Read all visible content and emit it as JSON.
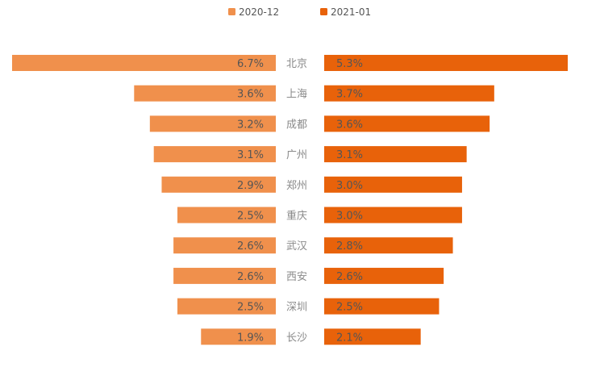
{
  "chart_data": {
    "type": "bar",
    "orientation": "horizontal-butterfly",
    "categories": [
      "北京",
      "上海",
      "成都",
      "广州",
      "郑州",
      "重庆",
      "武汉",
      "西安",
      "深圳",
      "长沙"
    ],
    "series": [
      {
        "name": "2020-12",
        "color": "#f0904c",
        "side": "left",
        "values": [
          6.7,
          3.6,
          3.2,
          3.1,
          2.9,
          2.5,
          2.6,
          2.6,
          2.5,
          1.9
        ],
        "labels": [
          "6.7%",
          "3.6%",
          "3.2%",
          "3.1%",
          "2.9%",
          "2.5%",
          "2.6%",
          "2.6%",
          "2.5%",
          "1.9%"
        ]
      },
      {
        "name": "2021-01",
        "color": "#e8620a",
        "side": "right",
        "values": [
          5.3,
          3.7,
          3.6,
          3.1,
          3.0,
          3.0,
          2.8,
          2.6,
          2.5,
          2.1
        ],
        "labels": [
          "5.3%",
          "3.7%",
          "3.6%",
          "3.1%",
          "3.0%",
          "3.0%",
          "2.8%",
          "2.6%",
          "2.5%",
          "2.1%"
        ]
      }
    ],
    "legend_position": "top-center",
    "grid": false
  }
}
